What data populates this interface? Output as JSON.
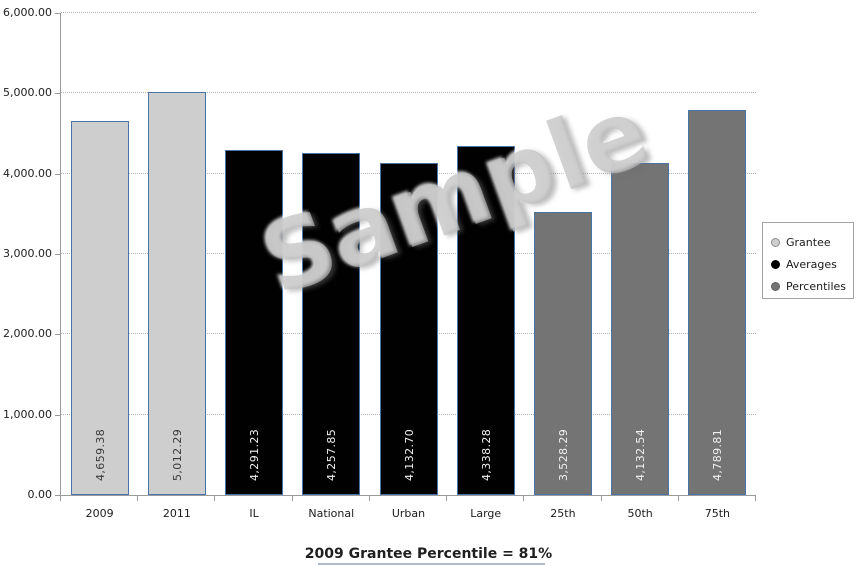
{
  "chart_data": {
    "type": "bar",
    "title": "2009 Grantee Percentile = 81%",
    "watermark": "Sample",
    "categories": [
      "2009",
      "2011",
      "IL",
      "National",
      "Urban",
      "Large",
      "25th",
      "50th",
      "75th"
    ],
    "values": [
      4659.38,
      5012.29,
      4291.23,
      4257.85,
      4132.7,
      4338.28,
      3528.29,
      4132.54,
      4789.81
    ],
    "value_labels": [
      "4,659.38",
      "5,012.29",
      "4,291.23",
      "4,257.85",
      "4,132.70",
      "4,338.28",
      "3,528.29",
      "4,132.54",
      "4,789.81"
    ],
    "bar_series": [
      "Grantee",
      "Grantee",
      "Averages",
      "Averages",
      "Averages",
      "Averages",
      "Percentiles",
      "Percentiles",
      "Percentiles"
    ],
    "series": [
      {
        "name": "Grantee",
        "color": "#cecece",
        "marker_border": "#8e8e8e",
        "label_color": "#3a3a3a"
      },
      {
        "name": "Averages",
        "color": "#010101",
        "marker_border": "#010101",
        "label_color": "#f2f2f2"
      },
      {
        "name": "Percentiles",
        "color": "#747474",
        "marker_border": "#5e5e5e",
        "label_color": "#f0f0f0"
      }
    ],
    "bar_border_color": "#4a74a8",
    "ylim": [
      0,
      6000
    ],
    "ytick_step": 1000,
    "ytick_labels": [
      "0.00",
      "1,000.00",
      "2,000.00",
      "3,000.00",
      "4,000.00",
      "5,000.00",
      "6,000.00"
    ],
    "grid": true,
    "legend_position": "right",
    "legend_entries": [
      "Grantee",
      "Averages",
      "Percentiles"
    ]
  }
}
